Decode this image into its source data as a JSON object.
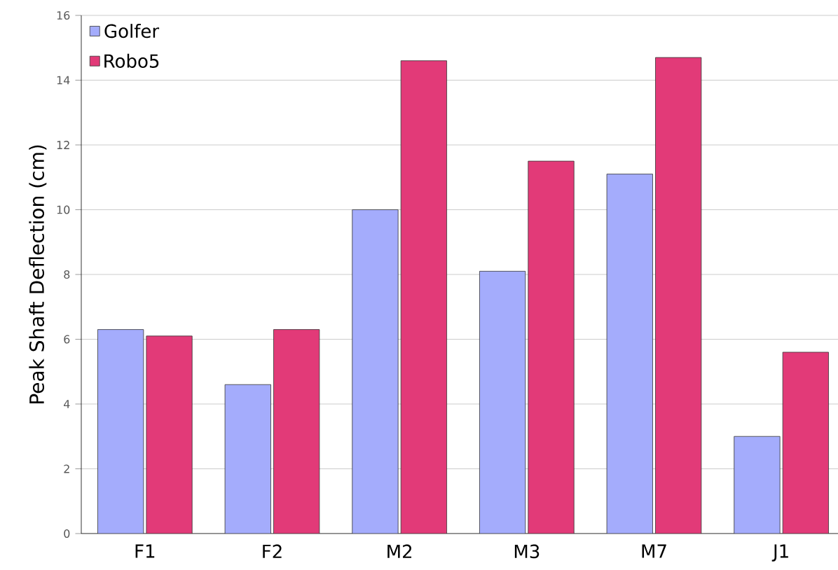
{
  "chart_data": {
    "type": "bar",
    "ylabel": "Peak Shaft Deflection (cm)",
    "categories": [
      "F1",
      "F2",
      "M2",
      "M3",
      "M7",
      "J1"
    ],
    "series": [
      {
        "name": "Golfer",
        "color": "#a4acfc",
        "values": [
          6.3,
          4.6,
          10.0,
          8.1,
          11.1,
          3.0
        ]
      },
      {
        "name": "Robo5",
        "color": "#e23a78",
        "values": [
          6.1,
          6.3,
          14.6,
          11.5,
          14.7,
          5.6
        ]
      }
    ],
    "ylim": [
      0,
      16
    ],
    "yticks": [
      0,
      2,
      4,
      6,
      8,
      10,
      12,
      14,
      16
    ],
    "grid": "y",
    "legend": "top left"
  }
}
